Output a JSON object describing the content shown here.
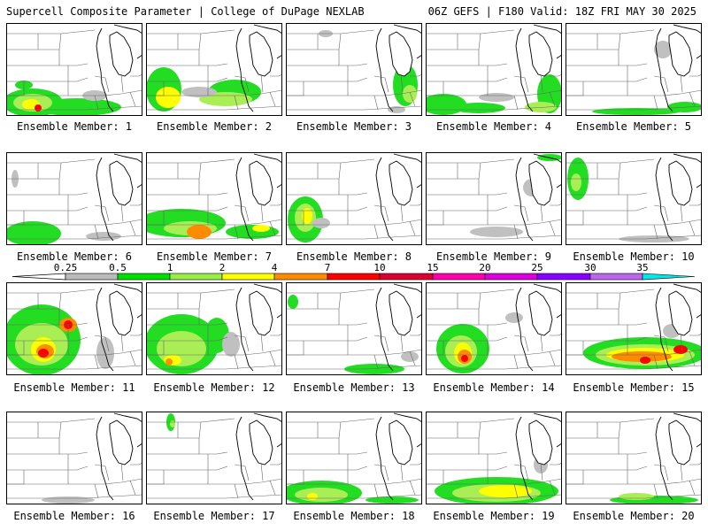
{
  "header": {
    "title": "Supercell Composite Parameter | College of DuPage NEXLAB",
    "run_info": "06Z GEFS | F180 Valid: 18Z FRI MAY 30 2025"
  },
  "members": [
    {
      "label": "Ensemble Member: 1"
    },
    {
      "label": "Ensemble Member: 2"
    },
    {
      "label": "Ensemble Member: 3"
    },
    {
      "label": "Ensemble Member: 4"
    },
    {
      "label": "Ensemble Member: 5"
    },
    {
      "label": "Ensemble Member: 6"
    },
    {
      "label": "Ensemble Member: 7"
    },
    {
      "label": "Ensemble Member: 8"
    },
    {
      "label": "Ensemble Member: 9"
    },
    {
      "label": "Ensemble Member: 10"
    },
    {
      "label": "Ensemble Member: 11"
    },
    {
      "label": "Ensemble Member: 12"
    },
    {
      "label": "Ensemble Member: 13"
    },
    {
      "label": "Ensemble Member: 14"
    },
    {
      "label": "Ensemble Member: 15"
    },
    {
      "label": "Ensemble Member: 16"
    },
    {
      "label": "Ensemble Member: 17"
    },
    {
      "label": "Ensemble Member: 18"
    },
    {
      "label": "Ensemble Member: 19"
    },
    {
      "label": "Ensemble Member: 20"
    }
  ],
  "legend": {
    "ticks": [
      "0.25",
      "0.5",
      "1",
      "2",
      "4",
      "7",
      "10",
      "15",
      "20",
      "25",
      "30",
      "35"
    ],
    "colors": [
      "#bbbbbb",
      "#00e000",
      "#99ee44",
      "#ffff00",
      "#ff8c00",
      "#ff0000",
      "#dd0033",
      "#ff00aa",
      "#dd00dd",
      "#8800ff",
      "#bb66ee",
      "#00e8e8"
    ]
  },
  "colors": {
    "gray": "#c0c0c0",
    "green": "#22dd22",
    "lightgreen": "#aaee55",
    "yellow": "#ffff00",
    "orange": "#ff8c00",
    "red": "#ff0000"
  }
}
